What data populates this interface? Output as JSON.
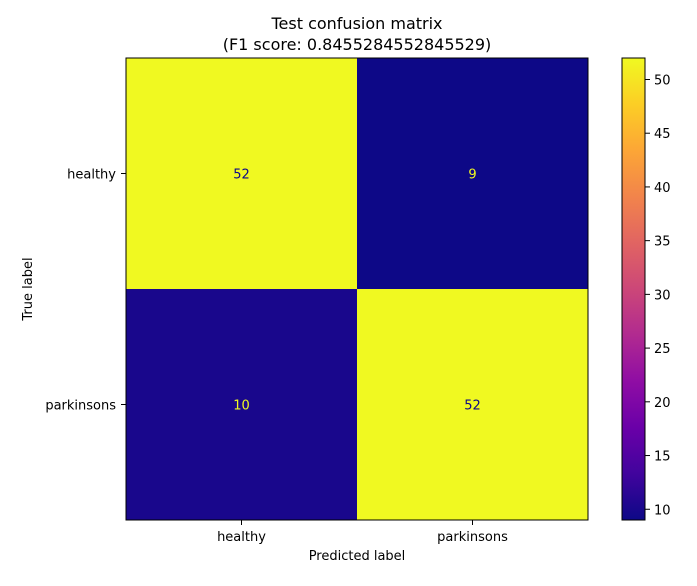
{
  "chart_data": {
    "type": "heatmap",
    "title": "Test confusion matrix",
    "subtitle": "(F1 score: 0.8455284552845529)",
    "xlabel": "Predicted label",
    "ylabel": "True label",
    "x_categories": [
      "healthy",
      "parkinsons"
    ],
    "y_categories": [
      "healthy",
      "parkinsons"
    ],
    "values": [
      [
        52,
        9
      ],
      [
        10,
        52
      ]
    ],
    "colormap": "plasma",
    "colorbar": {
      "range": [
        9,
        52
      ],
      "ticks": [
        10,
        15,
        20,
        25,
        30,
        35,
        40,
        45,
        50
      ]
    },
    "text_color": "#f0f921",
    "grid": false
  }
}
